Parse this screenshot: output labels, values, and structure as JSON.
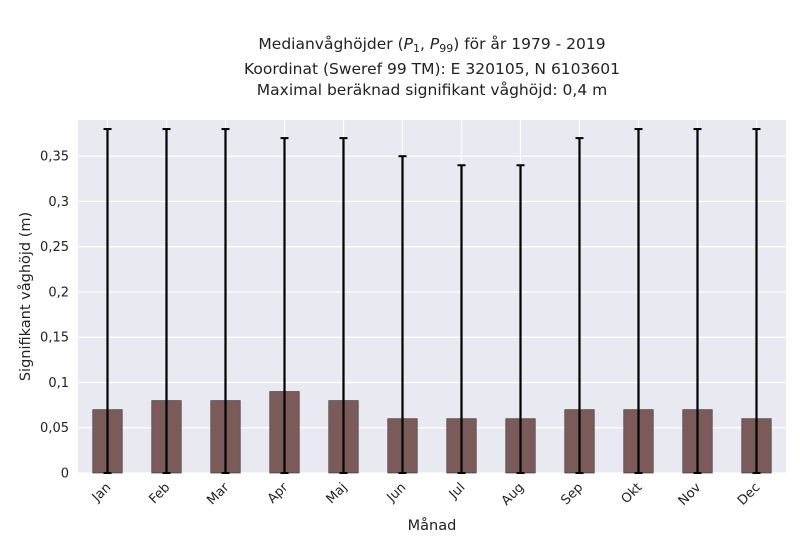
{
  "title": {
    "line1_prefix": "Medianvåghöjder (",
    "p1_letter": "P",
    "p1_sub": "1",
    "sep": ", ",
    "p99_letter": "P",
    "p99_sub": "99",
    "line1_suffix": ") för år 1979 - 2019",
    "line2": "Koordinat (Sweref 99 TM): E 320105, N 6103601",
    "line3": "Maximal beräknad signifikant våghöjd: 0,4 m"
  },
  "chart_data": {
    "type": "bar",
    "xlabel": "Månad",
    "ylabel": "Signifikant våghöjd (m)",
    "categories": [
      "Jan",
      "Feb",
      "Mar",
      "Apr",
      "Maj",
      "Jun",
      "Jul",
      "Aug",
      "Sep",
      "Okt",
      "Nov",
      "Dec"
    ],
    "values": [
      0.07,
      0.08,
      0.08,
      0.09,
      0.08,
      0.06,
      0.06,
      0.06,
      0.07,
      0.07,
      0.07,
      0.06
    ],
    "error_low": [
      0,
      0,
      0,
      0,
      0,
      0,
      0,
      0,
      0,
      0,
      0,
      0
    ],
    "error_high": [
      0.38,
      0.38,
      0.38,
      0.37,
      0.37,
      0.35,
      0.34,
      0.34,
      0.37,
      0.38,
      0.38,
      0.38
    ],
    "ylim": [
      0,
      0.39
    ],
    "yticks": [
      0,
      0.05,
      0.1,
      0.15,
      0.2,
      0.25,
      0.3,
      0.35
    ],
    "ytick_labels": [
      "0",
      "0,05",
      "0,1",
      "0,15",
      "0,2",
      "0,25",
      "0,3",
      "0,35"
    ],
    "grid": true,
    "colors": {
      "background": "#e9e9f1",
      "bar": "#7b5a5a",
      "bar_edge": "#3a2a2a",
      "error": "#000000",
      "grid": "#ffffff"
    }
  }
}
